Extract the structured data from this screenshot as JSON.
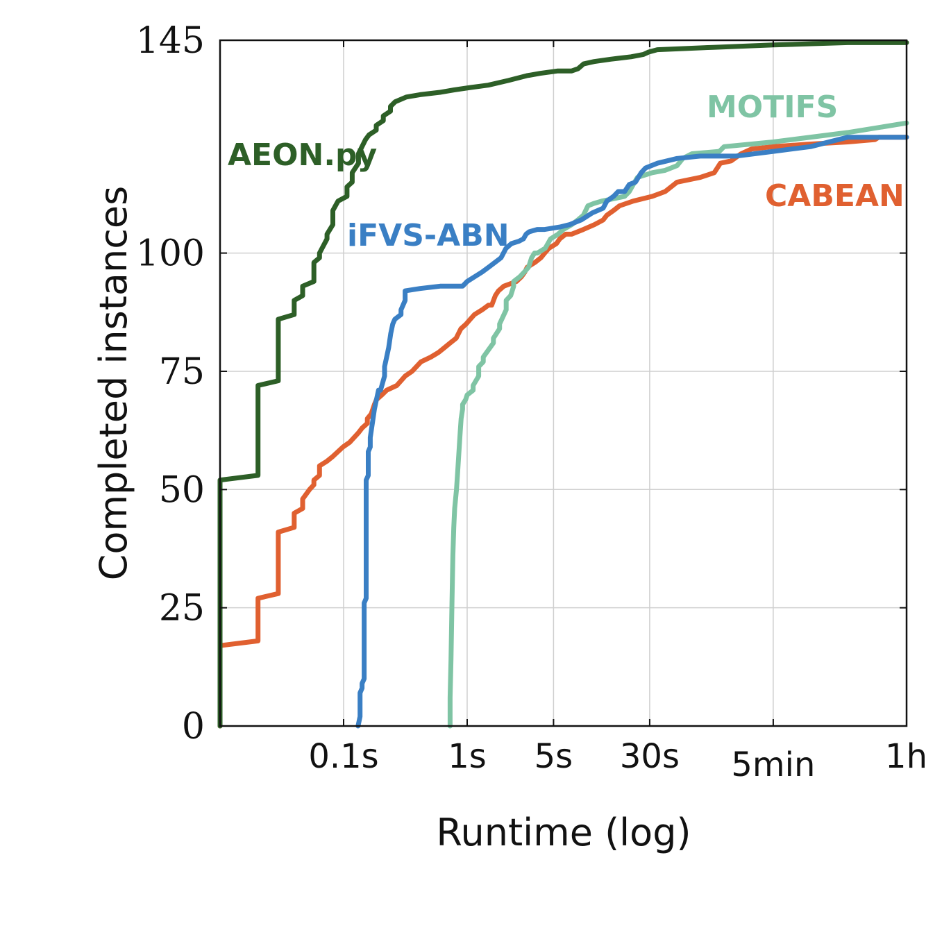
{
  "chart_data": {
    "type": "line",
    "xlabel": "Runtime (log)",
    "ylabel": "Completed instances",
    "x_scale": "log",
    "y_range": [
      0,
      145
    ],
    "x_range_seconds": [
      0.01,
      3600
    ],
    "y_ticks": [
      "0",
      "25",
      "50",
      "75",
      "100",
      "145"
    ],
    "y_tick_values": [
      0,
      25,
      50,
      75,
      100,
      145
    ],
    "x_ticks": [
      "0.1s",
      "1s",
      "5s",
      "30s",
      "5min",
      "1h"
    ],
    "x_tick_values": [
      0.1,
      1,
      5,
      30,
      300,
      3600
    ],
    "grid": true,
    "series": [
      {
        "name": "AEON.py",
        "color": "#2d5f27",
        "points": [
          [
            0.01,
            0
          ],
          [
            0.01,
            52
          ],
          [
            0.0203,
            53
          ],
          [
            0.0203,
            72
          ],
          [
            0.0296,
            73
          ],
          [
            0.0296,
            86
          ],
          [
            0.0398,
            87
          ],
          [
            0.0398,
            90
          ],
          [
            0.0466,
            91
          ],
          [
            0.0466,
            93
          ],
          [
            0.0575,
            94
          ],
          [
            0.0575,
            98
          ],
          [
            0.0638,
            99
          ],
          [
            0.0638,
            100
          ],
          [
            0.0734,
            103
          ],
          [
            0.0734,
            104
          ],
          [
            0.0818,
            106
          ],
          [
            0.0818,
            109
          ],
          [
            0.0902,
            111
          ],
          [
            0.1065,
            112
          ],
          [
            0.1065,
            114
          ],
          [
            0.1174,
            115
          ],
          [
            0.1174,
            117
          ],
          [
            0.1319,
            119
          ],
          [
            0.1319,
            121
          ],
          [
            0.1506,
            124
          ],
          [
            0.1605,
            125
          ],
          [
            0.1836,
            126
          ],
          [
            0.1836,
            127
          ],
          [
            0.2097,
            128
          ],
          [
            0.2097,
            129
          ],
          [
            0.2396,
            130
          ],
          [
            0.2396,
            131
          ],
          [
            0.2616,
            132
          ],
          [
            0.3216,
            133
          ],
          [
            0.4157,
            133.5
          ],
          [
            0.6035,
            134
          ],
          [
            0.7854,
            134.5
          ],
          [
            1.059,
            135
          ],
          [
            1.48,
            135.5
          ],
          [
            2.159,
            136.5
          ],
          [
            3.03,
            137.5
          ],
          [
            3.89,
            138
          ],
          [
            5.36,
            138.5
          ],
          [
            6.98,
            138.5
          ],
          [
            7.91,
            139
          ],
          [
            8.75,
            140
          ],
          [
            10.65,
            140.5
          ],
          [
            14.5,
            141
          ],
          [
            21.2,
            141.5
          ],
          [
            26.7,
            142
          ],
          [
            29.4,
            142.5
          ],
          [
            34.6,
            143
          ],
          [
            98,
            143.5
          ],
          [
            300,
            144
          ],
          [
            1203,
            144.5
          ],
          [
            3600,
            144.5
          ]
        ]
      },
      {
        "name": "iFVS-ABN",
        "color": "#3a7fc4",
        "points": [
          [
            0.1308,
            0
          ],
          [
            0.1359,
            2
          ],
          [
            0.1359,
            7
          ],
          [
            0.1411,
            8
          ],
          [
            0.1411,
            9
          ],
          [
            0.1466,
            10
          ],
          [
            0.1466,
            26
          ],
          [
            0.1523,
            27
          ],
          [
            0.1523,
            52
          ],
          [
            0.1582,
            53
          ],
          [
            0.1582,
            58
          ],
          [
            0.1643,
            59
          ],
          [
            0.1643,
            61
          ],
          [
            0.1775,
            67
          ],
          [
            0.1844,
            69
          ],
          [
            0.1916,
            71
          ],
          [
            0.199,
            71
          ],
          [
            0.2146,
            74
          ],
          [
            0.2146,
            76
          ],
          [
            0.2229,
            78
          ],
          [
            0.2316,
            80
          ],
          [
            0.2406,
            83
          ],
          [
            0.2499,
            85
          ],
          [
            0.2597,
            86
          ],
          [
            0.2916,
            87
          ],
          [
            0.2916,
            88
          ],
          [
            0.3146,
            90
          ],
          [
            0.3146,
            92
          ],
          [
            0.4157,
            92.5
          ],
          [
            0.6035,
            93
          ],
          [
            0.9187,
            93
          ],
          [
            1.0,
            94
          ],
          [
            1.15,
            95
          ],
          [
            1.32,
            96
          ],
          [
            1.49,
            97
          ],
          [
            1.88,
            99
          ],
          [
            2.06,
            101
          ],
          [
            2.28,
            102
          ],
          [
            2.62,
            102.5
          ],
          [
            2.85,
            103
          ],
          [
            3.0,
            104
          ],
          [
            3.17,
            104.5
          ],
          [
            3.69,
            105
          ],
          [
            4.24,
            105
          ],
          [
            5.61,
            105.5
          ],
          [
            6.72,
            106
          ],
          [
            8.38,
            107
          ],
          [
            10.3,
            108.5
          ],
          [
            12.6,
            109.5
          ],
          [
            13.5,
            111
          ],
          [
            15.3,
            112
          ],
          [
            16.7,
            113
          ],
          [
            18.8,
            113
          ],
          [
            20.5,
            114.5
          ],
          [
            23.0,
            115
          ],
          [
            25.6,
            117
          ],
          [
            27.8,
            118
          ],
          [
            34.6,
            119
          ],
          [
            50,
            120
          ],
          [
            77,
            120.5
          ],
          [
            150,
            120.5
          ],
          [
            300,
            121.5
          ],
          [
            600,
            122.5
          ],
          [
            1203,
            124.5
          ],
          [
            3600,
            124.5
          ]
        ]
      },
      {
        "name": "MOTIFS",
        "color": "#7fc4a4",
        "points": [
          [
            0.7279,
            0
          ],
          [
            0.7279,
            6
          ],
          [
            0.7402,
            14
          ],
          [
            0.753,
            26
          ],
          [
            0.7659,
            36
          ],
          [
            0.7789,
            42
          ],
          [
            0.7924,
            46
          ],
          [
            0.8059,
            48
          ],
          [
            0.8198,
            50
          ],
          [
            0.8339,
            53
          ],
          [
            0.8484,
            56
          ],
          [
            0.863,
            59
          ],
          [
            0.8781,
            62
          ],
          [
            0.8932,
            65
          ],
          [
            0.9187,
            67
          ],
          [
            0.9187,
            68
          ],
          [
            0.9716,
            69
          ],
          [
            1.0,
            70
          ],
          [
            1.118,
            71
          ],
          [
            1.118,
            72
          ],
          [
            1.24,
            74
          ],
          [
            1.24,
            76
          ],
          [
            1.35,
            77
          ],
          [
            1.35,
            78
          ],
          [
            1.63,
            81
          ],
          [
            1.63,
            82
          ],
          [
            1.83,
            84
          ],
          [
            1.83,
            85
          ],
          [
            2.07,
            88
          ],
          [
            2.07,
            90
          ],
          [
            2.25,
            91
          ],
          [
            2.38,
            93
          ],
          [
            2.38,
            94
          ],
          [
            2.67,
            95
          ],
          [
            2.9,
            96
          ],
          [
            3.14,
            97
          ],
          [
            3.32,
            99
          ],
          [
            3.51,
            100
          ],
          [
            3.7,
            100
          ],
          [
            4.28,
            101
          ],
          [
            4.73,
            103
          ],
          [
            5.44,
            104
          ],
          [
            6.01,
            105
          ],
          [
            7.01,
            106
          ],
          [
            7.86,
            107
          ],
          [
            8.72,
            108
          ],
          [
            9.5,
            110
          ],
          [
            10.6,
            110.5
          ],
          [
            12.3,
            111
          ],
          [
            15.3,
            111.5
          ],
          [
            18.8,
            112
          ],
          [
            20.5,
            113
          ],
          [
            22.1,
            114.5
          ],
          [
            23.9,
            116
          ],
          [
            31.5,
            117
          ],
          [
            40,
            117.5
          ],
          [
            50,
            118.5
          ],
          [
            55.6,
            120
          ],
          [
            66,
            121
          ],
          [
            110,
            121.5
          ],
          [
            120,
            122.5
          ],
          [
            300,
            123.5
          ],
          [
            1203,
            125.5
          ],
          [
            3600,
            127.5
          ]
        ]
      },
      {
        "name": "CABEAN",
        "color": "#e06030",
        "points": [
          [
            0.01,
            0
          ],
          [
            0.01,
            17
          ],
          [
            0.0203,
            18
          ],
          [
            0.0203,
            27
          ],
          [
            0.0296,
            28
          ],
          [
            0.0296,
            41
          ],
          [
            0.0398,
            42
          ],
          [
            0.0398,
            45
          ],
          [
            0.0466,
            46
          ],
          [
            0.0466,
            48
          ],
          [
            0.053,
            50
          ],
          [
            0.0575,
            51
          ],
          [
            0.0575,
            52
          ],
          [
            0.0638,
            53
          ],
          [
            0.0638,
            55
          ],
          [
            0.0734,
            56
          ],
          [
            0.0818,
            57
          ],
          [
            0.0988,
            59
          ],
          [
            0.112,
            60
          ],
          [
            0.1319,
            62
          ],
          [
            0.141,
            63
          ],
          [
            0.1556,
            64
          ],
          [
            0.1556,
            65
          ],
          [
            0.1674,
            66
          ],
          [
            0.1775,
            68
          ],
          [
            0.1844,
            69
          ],
          [
            0.204,
            70
          ],
          [
            0.2229,
            71
          ],
          [
            0.2694,
            72
          ],
          [
            0.3151,
            74
          ],
          [
            0.358,
            75
          ],
          [
            0.4226,
            77
          ],
          [
            0.5075,
            78
          ],
          [
            0.5871,
            79
          ],
          [
            0.655,
            80
          ],
          [
            0.7294,
            81
          ],
          [
            0.8145,
            82
          ],
          [
            0.8898,
            84
          ],
          [
            0.9807,
            85
          ],
          [
            1.058,
            86
          ],
          [
            1.146,
            87
          ],
          [
            1.32,
            88
          ],
          [
            1.49,
            89
          ],
          [
            1.58,
            89
          ],
          [
            1.69,
            91
          ],
          [
            1.79,
            92
          ],
          [
            1.98,
            93
          ],
          [
            2.51,
            94
          ],
          [
            2.75,
            95
          ],
          [
            2.93,
            96
          ],
          [
            3.06,
            97
          ],
          [
            3.53,
            98
          ],
          [
            3.95,
            99
          ],
          [
            4.24,
            100
          ],
          [
            4.58,
            101
          ],
          [
            5.28,
            102
          ],
          [
            5.61,
            103
          ],
          [
            6.28,
            104
          ],
          [
            7.01,
            104
          ],
          [
            8.72,
            105
          ],
          [
            10.7,
            106
          ],
          [
            12.6,
            107
          ],
          [
            13.5,
            108
          ],
          [
            15.3,
            109
          ],
          [
            17.1,
            110
          ],
          [
            22.1,
            111
          ],
          [
            31.5,
            112
          ],
          [
            40,
            113
          ],
          [
            50,
            115
          ],
          [
            77,
            116
          ],
          [
            100,
            117
          ],
          [
            112,
            119
          ],
          [
            137,
            119.5
          ],
          [
            165,
            121
          ],
          [
            200,
            122
          ],
          [
            300,
            122.5
          ],
          [
            560,
            123
          ],
          [
            1203,
            123.5
          ],
          [
            2000,
            124
          ],
          [
            2145,
            124.5
          ],
          [
            3600,
            124.5
          ]
        ]
      }
    ]
  }
}
